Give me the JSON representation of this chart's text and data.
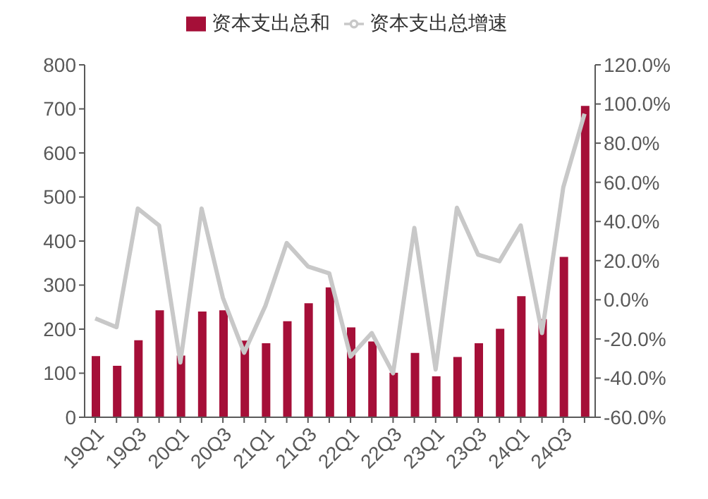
{
  "chart_data": {
    "type": "bar",
    "categories": [
      "19Q1",
      null,
      "19Q3",
      null,
      "20Q1",
      null,
      "20Q3",
      null,
      "21Q1",
      null,
      "21Q3",
      null,
      "22Q1",
      null,
      "22Q3",
      null,
      "23Q1",
      null,
      "23Q3",
      null,
      "24Q1",
      null,
      "24Q3",
      null
    ],
    "series": [
      {
        "name": "资本支出总和",
        "color": "#a50f38",
        "values": [
          139,
          117,
          175,
          243,
          140,
          240,
          243,
          174,
          168,
          218,
          259,
          295,
          204,
          172,
          101,
          146,
          93,
          137,
          168,
          201,
          275,
          223,
          364,
          707
        ]
      },
      {
        "name": "资本支出总增速",
        "type": "line",
        "axis": "y2",
        "color": "#c8c8c8",
        "values": [
          -9.5,
          -14,
          46.6,
          38,
          -32,
          46.6,
          1,
          -27,
          -3,
          29,
          17,
          13.5,
          -29,
          -17,
          -37.5,
          36.7,
          -35.6,
          47,
          23,
          19.7,
          38,
          -17,
          57.4,
          95
        ]
      }
    ],
    "ylim": [
      0,
      800
    ],
    "yticks": [
      0,
      100,
      200,
      300,
      400,
      500,
      600,
      700,
      800
    ],
    "y2lim": [
      -60,
      120
    ],
    "y2ticks": [
      {
        "value": -60,
        "label": "-60.0%"
      },
      {
        "value": -40,
        "label": "-40.0%"
      },
      {
        "value": -20,
        "label": "-20.0%"
      },
      {
        "value": 0,
        "label": "0.0%"
      },
      {
        "value": 20,
        "label": "20.0%"
      },
      {
        "value": 40,
        "label": "40.0%"
      },
      {
        "value": 60,
        "label": "60.0%"
      },
      {
        "value": 80,
        "label": "80.0%"
      },
      {
        "value": 100,
        "label": "100.0%"
      },
      {
        "value": 120,
        "label": "120.0%"
      }
    ],
    "legend": "top",
    "grid": false,
    "marker": "none"
  }
}
